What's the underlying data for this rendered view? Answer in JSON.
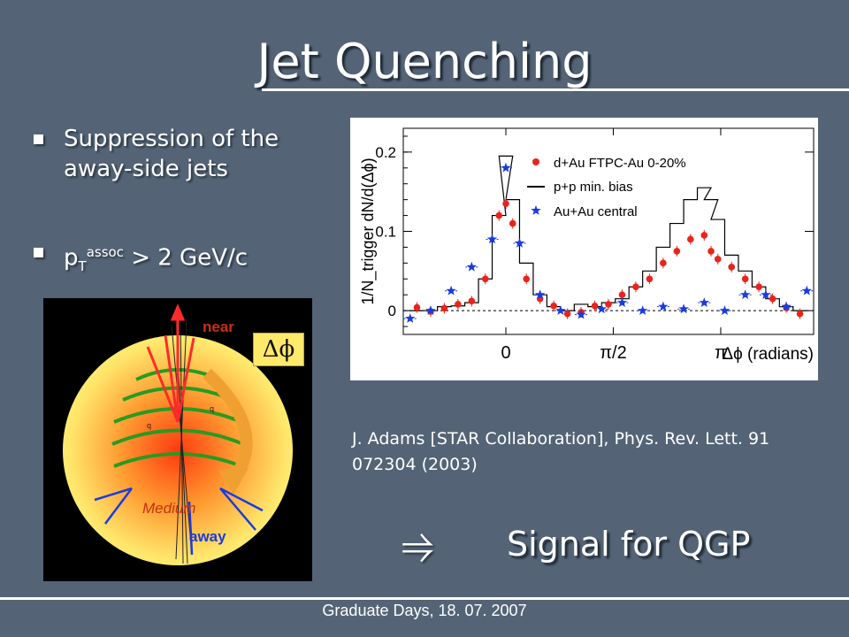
{
  "slide": {
    "title": "Jet Quenching",
    "bullet1": "Suppression of the away-side jets",
    "bullet2_main": "p",
    "bullet2_sub": "T",
    "bullet2_sup": "assoc",
    "bullet2_rest": " > 2 GeV/c",
    "dphi_label": "Δϕ",
    "citation": "J. Adams [STAR Collaboration], Phys. Rev. Lett. 91 072304 (2003)",
    "arrow": "⥤",
    "conclusion": "Signal for QGP",
    "footer": "Graduate Days, 18. 07. 2007"
  },
  "diagram": {
    "near_label": "near",
    "away_label": "away",
    "medium_label": "Medium",
    "q_label": "q"
  },
  "chart_data": {
    "type": "scatter",
    "title": "",
    "ylabel": "1/N_trigger dN/d(Δϕ)",
    "xlabel": "Δϕ (radians)",
    "x_ticks": [
      "0",
      "π/2",
      "π"
    ],
    "y_ticks": [
      "0",
      "0.1",
      "0.2"
    ],
    "ylim": [
      -0.03,
      0.23
    ],
    "xlim": [
      -1.5,
      4.5
    ],
    "legend_position": "top-right",
    "legend": [
      "d+Au FTPC-Au 0-20%",
      "p+p min. bias",
      "Au+Au central"
    ],
    "colors": {
      "dau": "#e8241c",
      "auau": "#1a3be0",
      "pp": "#000000"
    },
    "series": [
      {
        "name": "d+Au FTPC-Au 0-20%",
        "x": [
          -1.3,
          -1.1,
          -0.9,
          -0.7,
          -0.5,
          -0.3,
          -0.1,
          0.0,
          0.1,
          0.3,
          0.5,
          0.7,
          0.9,
          1.1,
          1.3,
          1.5,
          1.7,
          1.9,
          2.1,
          2.3,
          2.5,
          2.7,
          2.9,
          3.0,
          3.1,
          3.3,
          3.5,
          3.7,
          3.9,
          4.1,
          4.3
        ],
        "y": [
          0.004,
          -0.001,
          0.003,
          0.008,
          0.012,
          0.04,
          0.12,
          0.135,
          0.11,
          0.04,
          0.015,
          0.006,
          -0.004,
          -0.002,
          0.006,
          0.008,
          0.02,
          0.03,
          0.04,
          0.06,
          0.075,
          0.09,
          0.095,
          0.075,
          0.065,
          0.055,
          0.04,
          0.03,
          0.015,
          0.004,
          -0.004
        ]
      },
      {
        "name": "p+p min. bias",
        "x": [
          -1.3,
          -1.1,
          -0.9,
          -0.7,
          -0.5,
          -0.3,
          -0.1,
          0.0,
          0.1,
          0.3,
          0.5,
          0.7,
          0.9,
          1.1,
          1.3,
          1.5,
          1.7,
          1.9,
          2.1,
          2.3,
          2.5,
          2.7,
          2.9,
          3.0,
          3.1,
          3.3,
          3.5,
          3.7,
          3.9,
          4.1,
          4.3
        ],
        "y": [
          0.0,
          0.0,
          0.005,
          0.006,
          0.01,
          0.04,
          0.12,
          0.195,
          0.14,
          0.06,
          0.02,
          0.005,
          0.0,
          0.008,
          0.005,
          0.01,
          0.015,
          0.03,
          0.05,
          0.08,
          0.11,
          0.14,
          0.155,
          0.14,
          0.115,
          0.07,
          0.05,
          0.03,
          0.015,
          0.005,
          0.0
        ]
      },
      {
        "name": "Au+Au central",
        "x": [
          -1.4,
          -1.1,
          -0.8,
          -0.5,
          -0.2,
          0.0,
          0.2,
          0.5,
          0.8,
          1.1,
          1.4,
          1.7,
          2.0,
          2.3,
          2.6,
          2.9,
          3.2,
          3.5,
          3.8,
          4.1,
          4.4
        ],
        "y": [
          -0.01,
          0.0,
          0.025,
          0.055,
          0.09,
          0.18,
          0.085,
          0.02,
          0.0,
          -0.005,
          0.002,
          0.01,
          0.0,
          0.005,
          0.002,
          0.01,
          0.0,
          0.02,
          0.02,
          0.005,
          0.025
        ]
      }
    ]
  }
}
